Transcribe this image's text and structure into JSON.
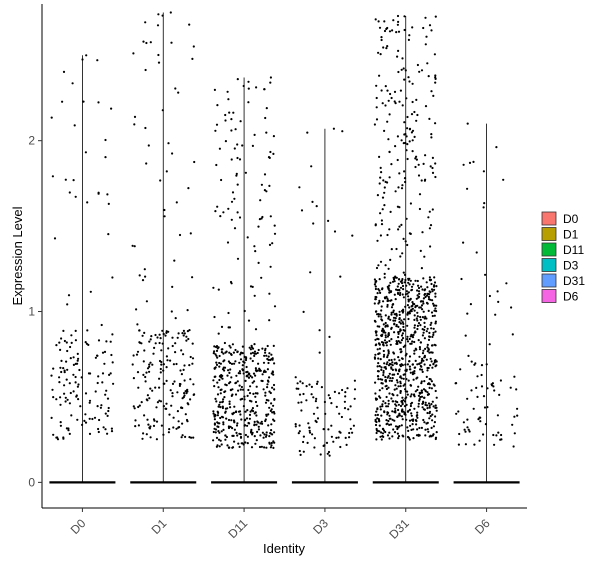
{
  "chart_data": {
    "type": "scatter",
    "subtype": "jittered-strip-with-violin",
    "title": "",
    "xlabel": "Identity",
    "ylabel": "Expression Level",
    "categories": [
      "D0",
      "D1",
      "D11",
      "D3",
      "D31",
      "D6"
    ],
    "ylim": [
      -0.15,
      2.8
    ],
    "yticks": [
      0,
      1,
      2
    ],
    "grid": false,
    "legend": {
      "position": "right",
      "entries": [
        "D0",
        "D1",
        "D11",
        "D3",
        "D31",
        "D6"
      ]
    },
    "colors": {
      "D0": "#F8766D",
      "D1": "#B79F00",
      "D11": "#00BA38",
      "D3": "#00BFC4",
      "D31": "#619CFF",
      "D6": "#F564E3"
    },
    "point_color": "#000000",
    "series_summary": [
      {
        "name": "D0",
        "max": 2.5,
        "points_shown": 160,
        "dense_range": [
          0.25,
          0.9
        ]
      },
      {
        "name": "D1",
        "max": 2.75,
        "points_shown": 230,
        "dense_range": [
          0.25,
          0.9
        ]
      },
      {
        "name": "D11",
        "max": 2.37,
        "points_shown": 520,
        "dense_range": [
          0.2,
          0.8
        ]
      },
      {
        "name": "D3",
        "max": 2.07,
        "points_shown": 110,
        "dense_range": [
          0.15,
          0.6
        ]
      },
      {
        "name": "D31",
        "max": 2.73,
        "points_shown": 1050,
        "dense_range": [
          0.25,
          1.2
        ]
      },
      {
        "name": "D6",
        "max": 2.1,
        "points_shown": 90,
        "dense_range": [
          0.2,
          0.7
        ]
      }
    ]
  }
}
